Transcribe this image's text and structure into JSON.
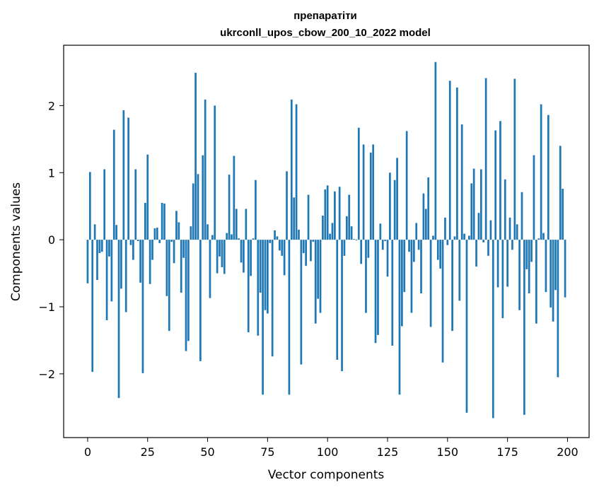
{
  "chart_data": {
    "type": "bar",
    "title": "препаратіти",
    "subtitle": "ukrconll_upos_cbow_200_10_2022 model",
    "xlabel": "Vector components",
    "ylabel": "Components values",
    "xlim": [
      -10,
      209
    ],
    "ylim": [
      -2.95,
      2.9
    ],
    "xticks": [
      0,
      25,
      50,
      75,
      100,
      125,
      150,
      175,
      200
    ],
    "xtick_labels": [
      "0",
      "25",
      "50",
      "75",
      "100",
      "125",
      "150",
      "175",
      "200"
    ],
    "yticks": [
      -2,
      -1,
      0,
      1,
      2
    ],
    "ytick_labels": [
      "−2",
      "−1",
      "0",
      "1",
      "2"
    ],
    "bar_color": "#1f77b4",
    "grid": false,
    "legend": "none",
    "x": [
      0,
      1,
      2,
      3,
      4,
      5,
      6,
      7,
      8,
      9,
      10,
      11,
      12,
      13,
      14,
      15,
      16,
      17,
      18,
      19,
      20,
      21,
      22,
      23,
      24,
      25,
      26,
      27,
      28,
      29,
      30,
      31,
      32,
      33,
      34,
      35,
      36,
      37,
      38,
      39,
      40,
      41,
      42,
      43,
      44,
      45,
      46,
      47,
      48,
      49,
      50,
      51,
      52,
      53,
      54,
      55,
      56,
      57,
      58,
      59,
      60,
      61,
      62,
      63,
      64,
      65,
      66,
      67,
      68,
      69,
      70,
      71,
      72,
      73,
      74,
      75,
      76,
      77,
      78,
      79,
      80,
      81,
      82,
      83,
      84,
      85,
      86,
      87,
      88,
      89,
      90,
      91,
      92,
      93,
      94,
      95,
      96,
      97,
      98,
      99,
      100,
      101,
      102,
      103,
      104,
      105,
      106,
      107,
      108,
      109,
      110,
      111,
      112,
      113,
      114,
      115,
      116,
      117,
      118,
      119,
      120,
      121,
      122,
      123,
      124,
      125,
      126,
      127,
      128,
      129,
      130,
      131,
      132,
      133,
      134,
      135,
      136,
      137,
      138,
      139,
      140,
      141,
      142,
      143,
      144,
      145,
      146,
      147,
      148,
      149,
      150,
      151,
      152,
      153,
      154,
      155,
      156,
      157,
      158,
      159,
      160,
      161,
      162,
      163,
      164,
      165,
      166,
      167,
      168,
      169,
      170,
      171,
      172,
      173,
      174,
      175,
      176,
      177,
      178,
      179,
      180,
      181,
      182,
      183,
      184,
      185,
      186,
      187,
      188,
      189,
      190,
      191,
      192,
      193,
      194,
      195,
      196,
      197,
      198,
      199
    ],
    "values": [
      -0.65,
      1.01,
      -1.97,
      0.23,
      -0.6,
      -0.2,
      -0.18,
      1.05,
      -1.2,
      -0.25,
      -0.92,
      1.64,
      0.22,
      -2.36,
      -0.73,
      1.93,
      -1.08,
      1.82,
      -0.08,
      -0.3,
      1.05,
      -0.02,
      -0.64,
      -1.99,
      0.55,
      1.27,
      -0.66,
      -0.3,
      0.17,
      0.18,
      -0.05,
      0.55,
      0.54,
      -0.84,
      -1.36,
      -0.03,
      -0.35,
      0.43,
      0.26,
      -0.79,
      -0.27,
      -1.66,
      -1.51,
      0.2,
      0.84,
      2.49,
      0.98,
      -1.81,
      1.26,
      2.09,
      0.23,
      -0.87,
      0.07,
      2.0,
      -0.5,
      -0.25,
      -0.41,
      -0.51,
      0.1,
      0.97,
      0.08,
      1.25,
      0.46,
      0.02,
      -0.34,
      -0.49,
      0.46,
      -1.38,
      -0.54,
      0.02,
      0.89,
      -1.43,
      -0.79,
      -2.31,
      -1.05,
      -1.1,
      -0.05,
      -1.74,
      0.14,
      0.05,
      -0.16,
      -0.24,
      -0.53,
      1.02,
      -2.31,
      2.09,
      0.63,
      2.02,
      0.15,
      -1.86,
      -0.2,
      -0.39,
      0.67,
      -0.32,
      -0.03,
      -1.25,
      -0.88,
      -1.09,
      0.36,
      0.75,
      0.81,
      0.09,
      0.25,
      0.72,
      -1.79,
      0.79,
      -1.96,
      -0.24,
      0.35,
      0.67,
      0.2,
      0.01,
      -0.01,
      1.67,
      -0.36,
      1.42,
      -1.09,
      -0.27,
      1.3,
      1.42,
      -1.54,
      -1.42,
      0.24,
      -0.15,
      -0.02,
      -0.55,
      1.0,
      -1.58,
      0.89,
      1.22,
      -2.31,
      -1.29,
      -0.78,
      1.62,
      -0.18,
      -1.09,
      -0.33,
      0.25,
      -0.15,
      -0.8,
      0.69,
      0.46,
      0.93,
      -1.3,
      0.06,
      2.65,
      -0.3,
      -0.43,
      -1.83,
      0.33,
      -0.08,
      2.37,
      -1.36,
      0.05,
      2.27,
      -0.91,
      1.72,
      0.09,
      -2.58,
      0.06,
      0.84,
      1.06,
      -0.4,
      0.4,
      1.05,
      -0.04,
      2.41,
      -0.24,
      0.29,
      -2.66,
      1.63,
      -0.71,
      1.77,
      -1.17,
      0.9,
      -0.7,
      0.33,
      -0.15,
      2.4,
      0.23,
      -1.05,
      0.71,
      -2.61,
      -0.44,
      -0.8,
      -0.33,
      1.26,
      -1.25,
      0.02,
      2.02,
      0.1,
      -0.78,
      1.86,
      -1.01,
      -1.22,
      -0.75,
      -2.05,
      1.4,
      0.76,
      -0.86
    ]
  }
}
